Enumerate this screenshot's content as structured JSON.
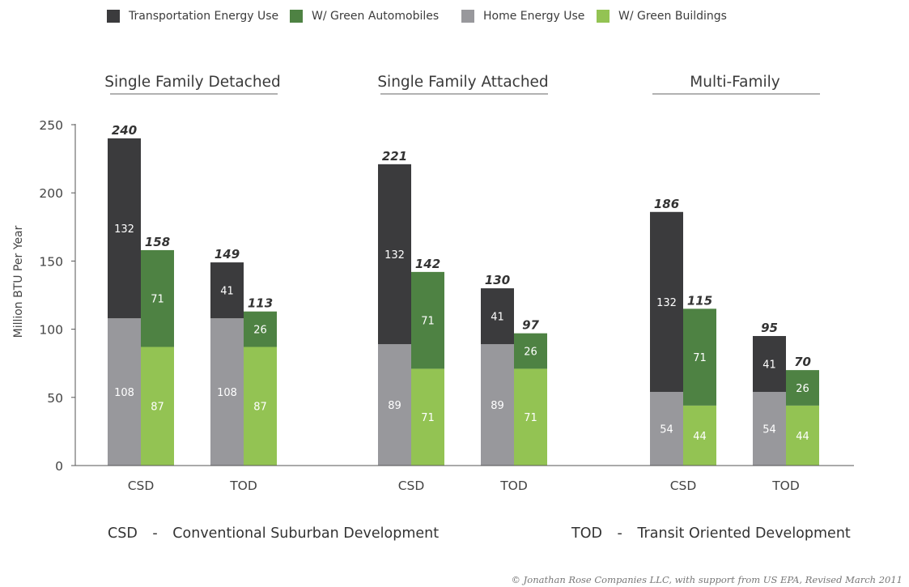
{
  "chart_data": {
    "type": "bar",
    "stacked": true,
    "ylabel": "Million BTU Per Year",
    "ylim": [
      0,
      250
    ],
    "yticks": [
      0,
      50,
      100,
      150,
      200,
      250
    ],
    "groups": [
      {
        "title": "Single Family Detached",
        "bars": [
          {
            "label": "CSD",
            "total": "240",
            "top": 132,
            "bottom": 108
          },
          {
            "label": "",
            "total": "158",
            "top": 71,
            "bottom": 87
          },
          {
            "label": "TOD",
            "total": "149",
            "top": 41,
            "bottom": 108
          },
          {
            "label": "",
            "total": "113",
            "top": 26,
            "bottom": 87
          }
        ]
      },
      {
        "title": "Single Family Attached",
        "bars": [
          {
            "label": "CSD",
            "total": "221",
            "top": 132,
            "bottom": 89
          },
          {
            "label": "",
            "total": "142",
            "top": 71,
            "bottom": 71
          },
          {
            "label": "TOD",
            "total": "130",
            "top": 41,
            "bottom": 89
          },
          {
            "label": "",
            "total": "97",
            "top": 26,
            "bottom": 71
          }
        ]
      },
      {
        "title": "Multi-Family",
        "bars": [
          {
            "label": "CSD",
            "total": "186",
            "top": 132,
            "bottom": 54
          },
          {
            "label": "",
            "total": "115",
            "top": 71,
            "bottom": 44
          },
          {
            "label": "TOD",
            "total": "95",
            "top": 41,
            "bottom": 54
          },
          {
            "label": "",
            "total": "70",
            "top": 26,
            "bottom": 44
          }
        ]
      }
    ],
    "legend": [
      {
        "label": "Transportation Energy Use",
        "color": "#3b3b3d"
      },
      {
        "label": "W/ Green Automobiles",
        "color": "#4e8243"
      },
      {
        "label": "Home Energy Use",
        "color": "#98989c"
      },
      {
        "label": "W/ Green Buildings",
        "color": "#93c353"
      }
    ]
  },
  "footnotes": {
    "csd_abbr": "CSD",
    "csd_sep": "-",
    "csd_text": "Conventional Suburban Development",
    "tod_abbr": "TOD",
    "tod_sep": "-",
    "tod_text": "Transit Oriented Development"
  },
  "copyright": "© Jonathan Rose Companies LLC, with support from US EPA, Revised March 2011"
}
